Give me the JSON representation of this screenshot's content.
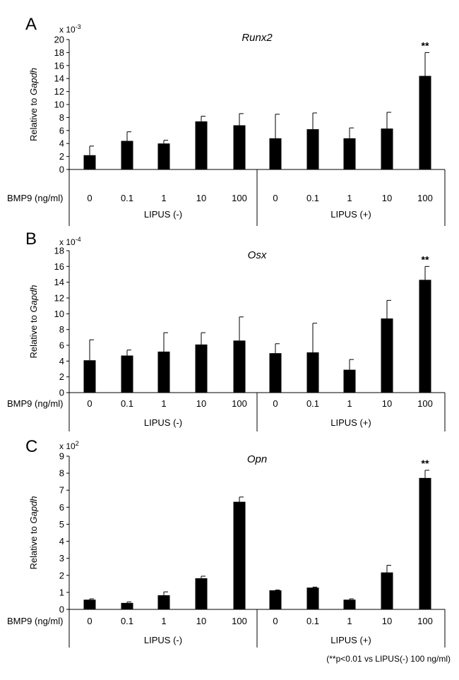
{
  "footnote": "(**p<0.01 vs LIPUS(-) 100 ng/ml)",
  "chart_data": [
    {
      "type": "bar",
      "panel": "A",
      "title": "Runx2",
      "ylabel_prefix": "Relative to ",
      "ylabel_gene": "Gapdh",
      "scale_base": "x 10",
      "scale_exp": "-3",
      "row_label": "BMP9 (ng/ml)",
      "categories": [
        "0",
        "0.1",
        "1",
        "10",
        "100",
        "0",
        "0.1",
        "1",
        "10",
        "100"
      ],
      "groups": [
        {
          "label": "LIPUS (-)",
          "count": 5
        },
        {
          "label": "LIPUS (+)",
          "count": 5
        }
      ],
      "values": [
        2.2,
        4.4,
        4.0,
        7.4,
        6.8,
        4.8,
        6.2,
        4.8,
        6.3,
        14.4
      ],
      "errors": [
        1.4,
        1.4,
        0.5,
        0.8,
        1.8,
        3.7,
        2.5,
        1.6,
        2.5,
        3.6
      ],
      "significance": [
        null,
        null,
        null,
        null,
        null,
        null,
        null,
        null,
        null,
        "**"
      ],
      "ylim": [
        0,
        20
      ],
      "yticks": [
        0,
        2,
        4,
        6,
        8,
        10,
        12,
        14,
        16,
        18,
        20
      ]
    },
    {
      "type": "bar",
      "panel": "B",
      "title": "Osx",
      "ylabel_prefix": "Relative to ",
      "ylabel_gene": "Gapdh",
      "scale_base": "x 10",
      "scale_exp": "-4",
      "row_label": "BMP9 (ng/ml)",
      "categories": [
        "0",
        "0.1",
        "1",
        "10",
        "100",
        "0",
        "0.1",
        "1",
        "10",
        "100"
      ],
      "groups": [
        {
          "label": "LIPUS (-)",
          "count": 5
        },
        {
          "label": "LIPUS (+)",
          "count": 5
        }
      ],
      "values": [
        4.1,
        4.7,
        5.2,
        6.1,
        6.6,
        5.0,
        5.1,
        2.9,
        9.4,
        14.3
      ],
      "errors": [
        2.6,
        0.7,
        2.4,
        1.5,
        3.0,
        1.2,
        3.7,
        1.3,
        2.3,
        1.7
      ],
      "significance": [
        null,
        null,
        null,
        null,
        null,
        null,
        null,
        null,
        null,
        "**"
      ],
      "ylim": [
        0,
        18
      ],
      "yticks": [
        0,
        2,
        4,
        6,
        8,
        10,
        12,
        14,
        16,
        18
      ]
    },
    {
      "type": "bar",
      "panel": "C",
      "title": "Opn",
      "ylabel_prefix": "Relative to ",
      "ylabel_gene": "Gapdh",
      "scale_base": "x 10",
      "scale_exp": "2",
      "row_label": "BMP9 (ng/ml)",
      "categories": [
        "0",
        "0.1",
        "1",
        "10",
        "100",
        "0",
        "0.1",
        "1",
        "10",
        "100"
      ],
      "groups": [
        {
          "label": "LIPUS (-)",
          "count": 5
        },
        {
          "label": "LIPUS (+)",
          "count": 5
        }
      ],
      "values": [
        0.57,
        0.38,
        0.83,
        1.83,
        6.32,
        1.12,
        1.28,
        0.57,
        2.17,
        7.72
      ],
      "errors": [
        0.05,
        0.06,
        0.2,
        0.12,
        0.28,
        0.02,
        0.03,
        0.05,
        0.42,
        0.45
      ],
      "significance": [
        null,
        null,
        null,
        null,
        null,
        null,
        null,
        null,
        null,
        "**"
      ],
      "ylim": [
        0,
        9
      ],
      "yticks": [
        0,
        1,
        2,
        3,
        4,
        5,
        6,
        7,
        8,
        9
      ]
    }
  ]
}
